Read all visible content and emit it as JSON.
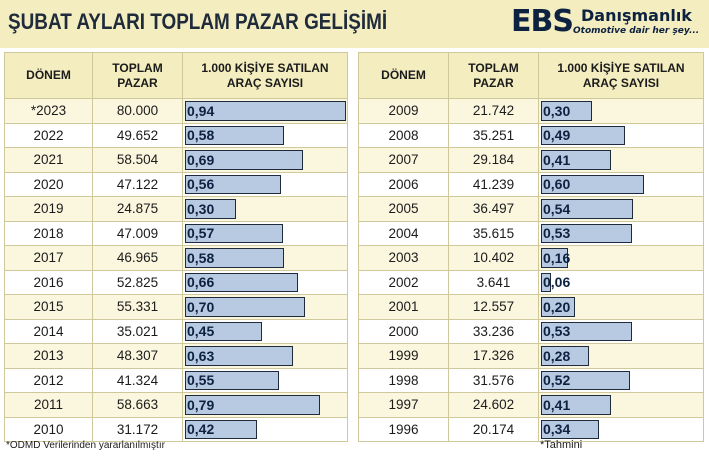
{
  "header": {
    "title": "ŞUBAT AYLARI TOPLAM PAZAR GELİŞİMİ",
    "logo_ebs": "EBS",
    "logo_name": "Danışmanlık",
    "logo_tagline": "Otomotive dair her şey..."
  },
  "table_headers": {
    "period": "DÖNEM",
    "total_market": "TOPLAM PAZAR",
    "per_1000": "1.000 KİŞİYE SATILAN ARAÇ SAYISI"
  },
  "footnotes": {
    "source": "*ODMD Verilerinden yararlanılmıştır",
    "estimate": "*Tahmini"
  },
  "colors": {
    "header_bg": "#f3edc0",
    "bar_fill": "#b7cae2",
    "bar_border": "#1f2b3a"
  },
  "chart_data": {
    "type": "table",
    "title": "ŞUBAT AYLARI TOPLAM PAZAR GELİŞİMİ",
    "columns": [
      "DÖNEM",
      "TOPLAM PAZAR",
      "1.000 KİŞİYE SATILAN ARAÇ SAYISI"
    ],
    "bar_max": 0.94,
    "left": [
      {
        "year": "*2023",
        "market": "80.000",
        "per1000": "0,94",
        "value": 0.94
      },
      {
        "year": "2022",
        "market": "49.652",
        "per1000": "0,58",
        "value": 0.58
      },
      {
        "year": "2021",
        "market": "58.504",
        "per1000": "0,69",
        "value": 0.69
      },
      {
        "year": "2020",
        "market": "47.122",
        "per1000": "0,56",
        "value": 0.56
      },
      {
        "year": "2019",
        "market": "24.875",
        "per1000": "0,30",
        "value": 0.3
      },
      {
        "year": "2018",
        "market": "47.009",
        "per1000": "0,57",
        "value": 0.57
      },
      {
        "year": "2017",
        "market": "46.965",
        "per1000": "0,58",
        "value": 0.58
      },
      {
        "year": "2016",
        "market": "52.825",
        "per1000": "0,66",
        "value": 0.66
      },
      {
        "year": "2015",
        "market": "55.331",
        "per1000": "0,70",
        "value": 0.7
      },
      {
        "year": "2014",
        "market": "35.021",
        "per1000": "0,45",
        "value": 0.45
      },
      {
        "year": "2013",
        "market": "48.307",
        "per1000": "0,63",
        "value": 0.63
      },
      {
        "year": "2012",
        "market": "41.324",
        "per1000": "0,55",
        "value": 0.55
      },
      {
        "year": "2011",
        "market": "58.663",
        "per1000": "0,79",
        "value": 0.79
      },
      {
        "year": "2010",
        "market": "31.172",
        "per1000": "0,42",
        "value": 0.42
      }
    ],
    "right": [
      {
        "year": "2009",
        "market": "21.742",
        "per1000": "0,30",
        "value": 0.3
      },
      {
        "year": "2008",
        "market": "35.251",
        "per1000": "0,49",
        "value": 0.49
      },
      {
        "year": "2007",
        "market": "29.184",
        "per1000": "0,41",
        "value": 0.41
      },
      {
        "year": "2006",
        "market": "41.239",
        "per1000": "0,60",
        "value": 0.6
      },
      {
        "year": "2005",
        "market": "36.497",
        "per1000": "0,54",
        "value": 0.54
      },
      {
        "year": "2004",
        "market": "35.615",
        "per1000": "0,53",
        "value": 0.53
      },
      {
        "year": "2003",
        "market": "10.402",
        "per1000": "0,16",
        "value": 0.16
      },
      {
        "year": "2002",
        "market": "3.641",
        "per1000": "0,06",
        "value": 0.06
      },
      {
        "year": "2001",
        "market": "12.557",
        "per1000": "0,20",
        "value": 0.2
      },
      {
        "year": "2000",
        "market": "33.236",
        "per1000": "0,53",
        "value": 0.53
      },
      {
        "year": "1999",
        "market": "17.326",
        "per1000": "0,28",
        "value": 0.28
      },
      {
        "year": "1998",
        "market": "31.576",
        "per1000": "0,52",
        "value": 0.52
      },
      {
        "year": "1997",
        "market": "24.602",
        "per1000": "0,41",
        "value": 0.41
      },
      {
        "year": "1996",
        "market": "20.174",
        "per1000": "0,34",
        "value": 0.34
      }
    ]
  }
}
